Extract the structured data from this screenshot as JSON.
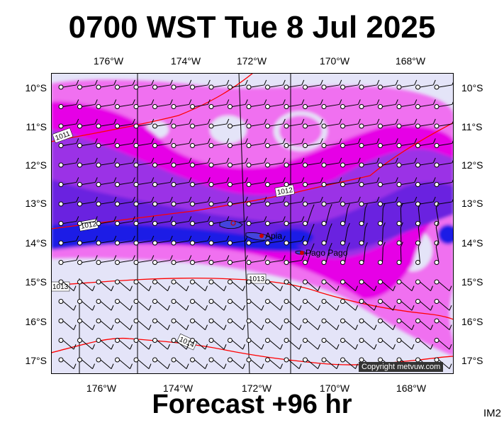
{
  "header": {
    "title": "0700 WST Tue 8 Jul 2025"
  },
  "footer": {
    "subtitle": "Forecast +96 hr",
    "image_tag": "IM2"
  },
  "map": {
    "lon_ticks": [
      "176°W",
      "174°W",
      "172°W",
      "170°W",
      "168°W"
    ],
    "lat_ticks": [
      "10°S",
      "11°S",
      "12°S",
      "13°S",
      "14°S",
      "15°S",
      "16°S",
      "17°S"
    ],
    "places": [
      {
        "name": "Apia",
        "color": "#cc0000"
      },
      {
        "name": "Pago Pago",
        "color": "#cc0000"
      }
    ],
    "isobars": [
      "1011",
      "1012",
      "1012",
      "1013",
      "1013",
      "1014"
    ],
    "copyright": "Copyright metvuw.com",
    "colors": {
      "background": "#e4e4f8",
      "light_magenta": "#f070f0",
      "magenta": "#e600e6",
      "violet": "#9b32e6",
      "purple": "#6a22e0",
      "blue": "#1c1ce6",
      "isobar": "#ff0000"
    }
  }
}
